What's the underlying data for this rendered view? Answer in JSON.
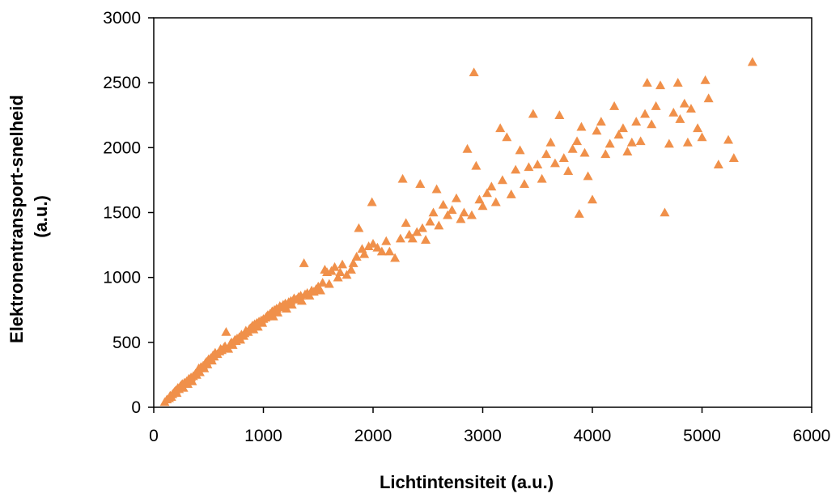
{
  "chart_data": {
    "type": "scatter",
    "title": "",
    "xlabel": "Lichtintensiteit (a.u.)",
    "ylabel_line1": "Elektronentransport-snelheid",
    "ylabel_line2": "(a.u.)",
    "xlim": [
      0,
      6000
    ],
    "ylim": [
      0,
      3000
    ],
    "x_ticks": [
      "0",
      "1000",
      "2000",
      "3000",
      "4000",
      "5000",
      "6000"
    ],
    "y_ticks": [
      "0",
      "500",
      "1000",
      "1500",
      "2000",
      "2500",
      "3000"
    ],
    "grid": false,
    "legend": "none",
    "marker": "triangle",
    "color": "#f0904a",
    "series": [
      {
        "points": [
          [
            100,
            40
          ],
          [
            120,
            60
          ],
          [
            140,
            70
          ],
          [
            150,
            90
          ],
          [
            160,
            80
          ],
          [
            170,
            100
          ],
          [
            180,
            110
          ],
          [
            190,
            120
          ],
          [
            200,
            130
          ],
          [
            210,
            110
          ],
          [
            220,
            150
          ],
          [
            230,
            140
          ],
          [
            240,
            160
          ],
          [
            250,
            170
          ],
          [
            260,
            180
          ],
          [
            270,
            150
          ],
          [
            280,
            190
          ],
          [
            300,
            200
          ],
          [
            310,
            180
          ],
          [
            320,
            220
          ],
          [
            330,
            210
          ],
          [
            340,
            230
          ],
          [
            350,
            200
          ],
          [
            360,
            240
          ],
          [
            380,
            260
          ],
          [
            390,
            250
          ],
          [
            400,
            280
          ],
          [
            410,
            300
          ],
          [
            420,
            270
          ],
          [
            430,
            310
          ],
          [
            450,
            320
          ],
          [
            460,
            300
          ],
          [
            470,
            340
          ],
          [
            480,
            350
          ],
          [
            490,
            330
          ],
          [
            500,
            370
          ],
          [
            520,
            380
          ],
          [
            530,
            360
          ],
          [
            540,
            400
          ],
          [
            550,
            390
          ],
          [
            560,
            420
          ],
          [
            580,
            410
          ],
          [
            600,
            430
          ],
          [
            610,
            450
          ],
          [
            620,
            440
          ],
          [
            640,
            460
          ],
          [
            650,
            470
          ],
          [
            660,
            580
          ],
          [
            680,
            450
          ],
          [
            700,
            490
          ],
          [
            710,
            500
          ],
          [
            720,
            480
          ],
          [
            740,
            520
          ],
          [
            750,
            510
          ],
          [
            760,
            530
          ],
          [
            780,
            540
          ],
          [
            790,
            520
          ],
          [
            800,
            560
          ],
          [
            820,
            550
          ],
          [
            830,
            570
          ],
          [
            840,
            590
          ],
          [
            860,
            580
          ],
          [
            870,
            600
          ],
          [
            880,
            610
          ],
          [
            900,
            630
          ],
          [
            910,
            600
          ],
          [
            920,
            640
          ],
          [
            940,
            650
          ],
          [
            950,
            620
          ],
          [
            960,
            660
          ],
          [
            980,
            670
          ],
          [
            990,
            650
          ],
          [
            1000,
            680
          ],
          [
            1020,
            690
          ],
          [
            1030,
            700
          ],
          [
            1040,
            710
          ],
          [
            1060,
            720
          ],
          [
            1080,
            740
          ],
          [
            1090,
            700
          ],
          [
            1100,
            750
          ],
          [
            1120,
            760
          ],
          [
            1130,
            730
          ],
          [
            1150,
            780
          ],
          [
            1160,
            770
          ],
          [
            1180,
            790
          ],
          [
            1200,
            800
          ],
          [
            1210,
            760
          ],
          [
            1230,
            810
          ],
          [
            1250,
            820
          ],
          [
            1260,
            790
          ],
          [
            1280,
            840
          ],
          [
            1300,
            830
          ],
          [
            1320,
            850
          ],
          [
            1340,
            860
          ],
          [
            1350,
            820
          ],
          [
            1370,
            1110
          ],
          [
            1380,
            870
          ],
          [
            1400,
            880
          ],
          [
            1420,
            860
          ],
          [
            1440,
            900
          ],
          [
            1460,
            890
          ],
          [
            1480,
            910
          ],
          [
            1500,
            930
          ],
          [
            1520,
            900
          ],
          [
            1540,
            960
          ],
          [
            1560,
            1060
          ],
          [
            1580,
            1040
          ],
          [
            1600,
            950
          ],
          [
            1620,
            1050
          ],
          [
            1650,
            1080
          ],
          [
            1680,
            1000
          ],
          [
            1700,
            1040
          ],
          [
            1720,
            1100
          ],
          [
            1760,
            1020
          ],
          [
            1800,
            1060
          ],
          [
            1820,
            1110
          ],
          [
            1850,
            1160
          ],
          [
            1870,
            1380
          ],
          [
            1900,
            1220
          ],
          [
            1920,
            1180
          ],
          [
            1960,
            1240
          ],
          [
            1990,
            1580
          ],
          [
            2000,
            1260
          ],
          [
            2040,
            1230
          ],
          [
            2080,
            1200
          ],
          [
            2120,
            1280
          ],
          [
            2150,
            1200
          ],
          [
            2200,
            1150
          ],
          [
            2250,
            1300
          ],
          [
            2270,
            1760
          ],
          [
            2300,
            1420
          ],
          [
            2330,
            1330
          ],
          [
            2360,
            1300
          ],
          [
            2400,
            1350
          ],
          [
            2430,
            1720
          ],
          [
            2450,
            1380
          ],
          [
            2480,
            1290
          ],
          [
            2520,
            1430
          ],
          [
            2550,
            1500
          ],
          [
            2580,
            1680
          ],
          [
            2600,
            1400
          ],
          [
            2640,
            1560
          ],
          [
            2680,
            1480
          ],
          [
            2720,
            1520
          ],
          [
            2760,
            1610
          ],
          [
            2800,
            1450
          ],
          [
            2830,
            1500
          ],
          [
            2860,
            1990
          ],
          [
            2900,
            1480
          ],
          [
            2920,
            2580
          ],
          [
            2940,
            1860
          ],
          [
            2970,
            1600
          ],
          [
            3000,
            1550
          ],
          [
            3040,
            1650
          ],
          [
            3080,
            1700
          ],
          [
            3120,
            1580
          ],
          [
            3160,
            2150
          ],
          [
            3180,
            1750
          ],
          [
            3220,
            2080
          ],
          [
            3260,
            1640
          ],
          [
            3300,
            1830
          ],
          [
            3340,
            1980
          ],
          [
            3380,
            1720
          ],
          [
            3420,
            1850
          ],
          [
            3460,
            2260
          ],
          [
            3500,
            1870
          ],
          [
            3540,
            1760
          ],
          [
            3580,
            1950
          ],
          [
            3620,
            2040
          ],
          [
            3660,
            1880
          ],
          [
            3700,
            2250
          ],
          [
            3740,
            1920
          ],
          [
            3780,
            1820
          ],
          [
            3820,
            1990
          ],
          [
            3860,
            2050
          ],
          [
            3880,
            1490
          ],
          [
            3900,
            2160
          ],
          [
            3930,
            1960
          ],
          [
            3960,
            1780
          ],
          [
            4000,
            1600
          ],
          [
            4040,
            2130
          ],
          [
            4080,
            2200
          ],
          [
            4120,
            1950
          ],
          [
            4160,
            2030
          ],
          [
            4200,
            2320
          ],
          [
            4240,
            2100
          ],
          [
            4280,
            2150
          ],
          [
            4320,
            1970
          ],
          [
            4360,
            2040
          ],
          [
            4400,
            2200
          ],
          [
            4440,
            2050
          ],
          [
            4480,
            2260
          ],
          [
            4500,
            2500
          ],
          [
            4540,
            2180
          ],
          [
            4580,
            2320
          ],
          [
            4620,
            2480
          ],
          [
            4660,
            1500
          ],
          [
            4700,
            2030
          ],
          [
            4740,
            2270
          ],
          [
            4780,
            2500
          ],
          [
            4800,
            2220
          ],
          [
            4840,
            2340
          ],
          [
            4870,
            2040
          ],
          [
            4900,
            2300
          ],
          [
            4960,
            2150
          ],
          [
            5000,
            2080
          ],
          [
            5030,
            2520
          ],
          [
            5060,
            2380
          ],
          [
            5150,
            1870
          ],
          [
            5240,
            2060
          ],
          [
            5290,
            1920
          ],
          [
            5460,
            2660
          ]
        ]
      }
    ]
  }
}
